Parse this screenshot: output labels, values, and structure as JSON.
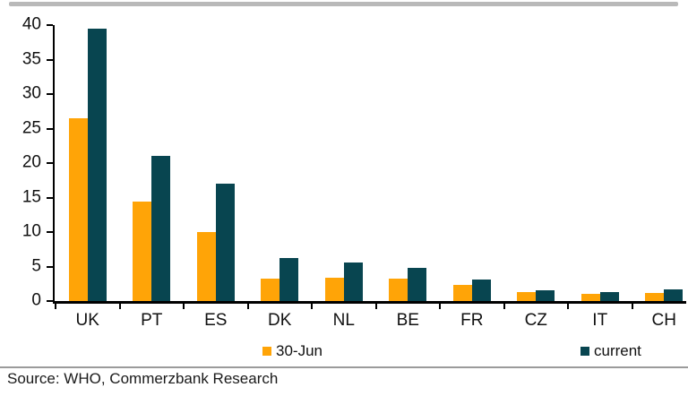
{
  "chart_data": {
    "type": "bar",
    "title": "",
    "categories": [
      "UK",
      "PT",
      "ES",
      "DK",
      "NL",
      "BE",
      "FR",
      "CZ",
      "IT",
      "CH"
    ],
    "series": [
      {
        "name": "30-Jun",
        "color": "#ffa407",
        "values": [
          26.5,
          14.4,
          10.0,
          3.3,
          3.4,
          3.3,
          2.3,
          1.3,
          1.1,
          1.2
        ]
      },
      {
        "name": "current",
        "color": "#084550",
        "values": [
          39.5,
          21.0,
          17.0,
          6.2,
          5.6,
          4.8,
          3.1,
          1.5,
          1.3,
          1.7
        ]
      }
    ],
    "xlabel": "",
    "ylabel": "",
    "ylim": [
      0,
      40
    ],
    "yticks": [
      0,
      5,
      10,
      15,
      20,
      25,
      30,
      35,
      40
    ],
    "grid": false,
    "legend_position": "bottom"
  },
  "footer": {
    "source_label": "Source: WHO, Commerzbank Research"
  },
  "colors": {
    "axis": "#000000",
    "top_rule": "#b9b9b9",
    "separator": "#9b9b9b"
  }
}
